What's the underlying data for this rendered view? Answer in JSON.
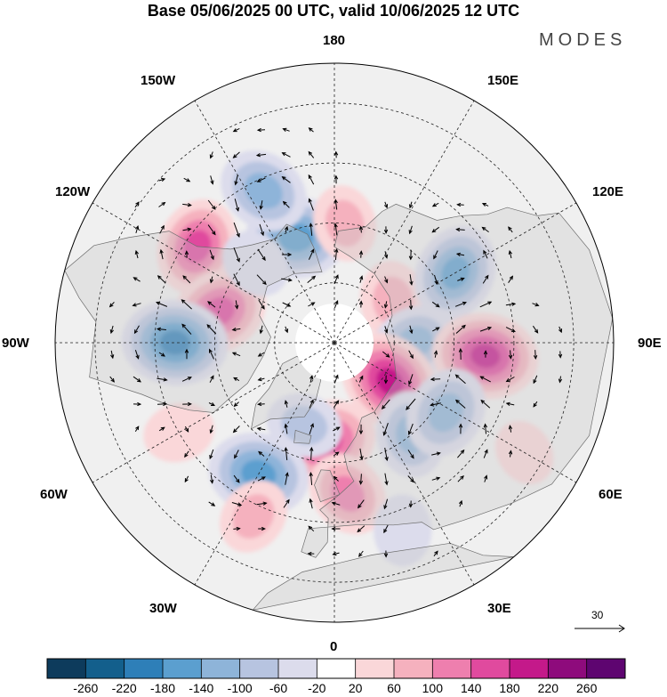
{
  "title": "Base 05/06/2025 00 UTC, valid 10/06/2025 12 UTC",
  "brand": "MODES",
  "longitude_labels": {
    "lon_180": "180",
    "lon_150w": "150W",
    "lon_150e": "150E",
    "lon_120w": "120W",
    "lon_120e": "120E",
    "lon_90w": "90W",
    "lon_90e": "90E",
    "lon_60w": "60W",
    "lon_60e": "60E",
    "lon_30w": "30W",
    "lon_30e": "30E",
    "lon_0": "0"
  },
  "reference_vector": "30",
  "colorbar": {
    "ticks": [
      "-260",
      "-220",
      "-180",
      "-140",
      "-100",
      "-60",
      "-20",
      "20",
      "60",
      "100",
      "140",
      "180",
      "220",
      "260"
    ],
    "colors": [
      "#0d3b5c",
      "#135f8c",
      "#2e7fb8",
      "#5b9fcf",
      "#8eb4d9",
      "#b7c4e0",
      "#dcdcec",
      "#ffffff",
      "#fad7d9",
      "#f5b1be",
      "#ee7fae",
      "#e04a9e",
      "#c4198a",
      "#8e0b7c",
      "#5e0570"
    ]
  },
  "colors": {
    "land": "#e8e8e8",
    "coast": "#6e6e6e"
  },
  "anomalies": [
    {
      "lat": 62,
      "lon": -160,
      "value": -180
    },
    {
      "lat": 48,
      "lon": -155,
      "value": -140
    },
    {
      "lat": 60,
      "lon": 175,
      "value": 80
    },
    {
      "lat": 48,
      "lon": -125,
      "value": 160
    },
    {
      "lat": 60,
      "lon": -105,
      "value": 170
    },
    {
      "lat": 50,
      "lon": -90,
      "value": -200
    },
    {
      "lat": 62,
      "lon": -135,
      "value": -60
    },
    {
      "lat": 72,
      "lon": 125,
      "value": 100
    },
    {
      "lat": 55,
      "lon": 120,
      "value": -160
    },
    {
      "lat": 70,
      "lon": 90,
      "value": -120
    },
    {
      "lat": 52,
      "lon": 85,
      "value": 200
    },
    {
      "lat": 73,
      "lon": 55,
      "value": 200
    },
    {
      "lat": 60,
      "lon": 40,
      "value": -120
    },
    {
      "lat": 57,
      "lon": 58,
      "value": -140
    },
    {
      "lat": 65,
      "lon": -5,
      "value": 180
    },
    {
      "lat": 52,
      "lon": -30,
      "value": -180
    },
    {
      "lat": 52,
      "lon": 5,
      "value": 120
    },
    {
      "lat": 40,
      "lon": 20,
      "value": -60
    },
    {
      "lat": 42,
      "lon": -25,
      "value": 80
    },
    {
      "lat": 45,
      "lon": -60,
      "value": 60
    },
    {
      "lat": 68,
      "lon": -20,
      "value": -80
    },
    {
      "lat": 35,
      "lon": 60,
      "value": 40
    }
  ]
}
